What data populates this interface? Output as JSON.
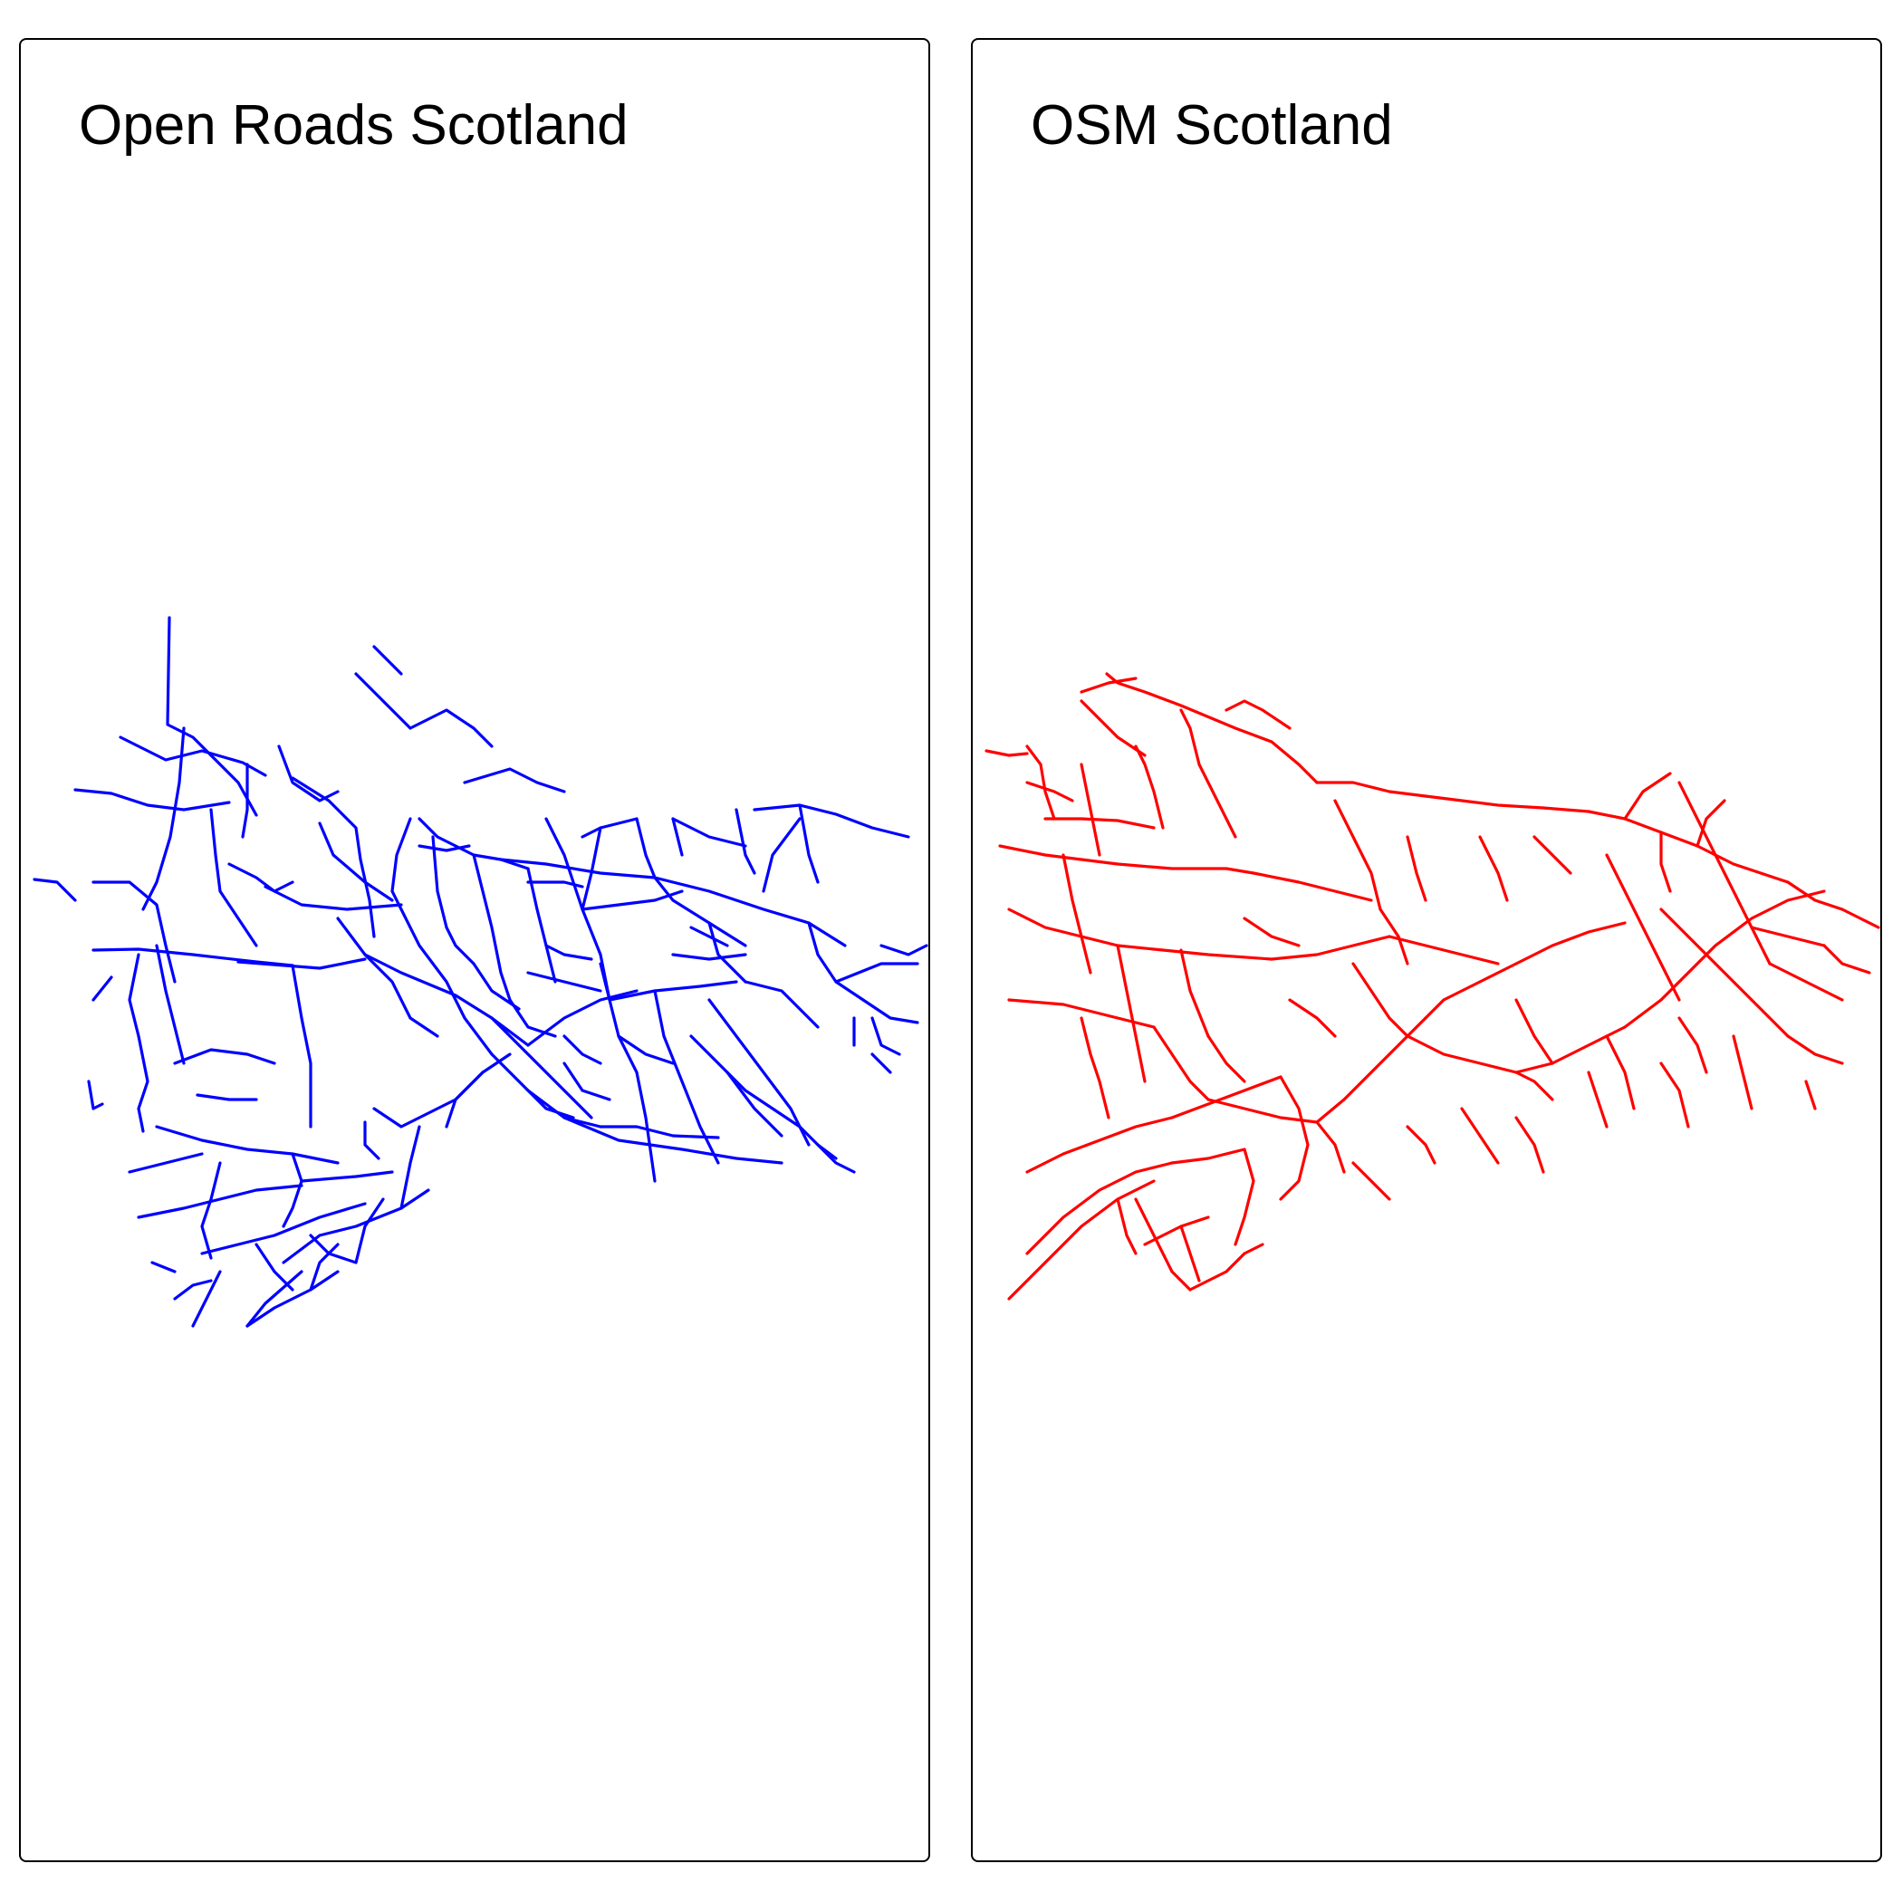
{
  "panels": [
    {
      "title": "Open Roads Scotland",
      "road_color": "#0000ff"
    },
    {
      "title": "OSM Scotland",
      "road_color": "#ff0000"
    }
  ]
}
